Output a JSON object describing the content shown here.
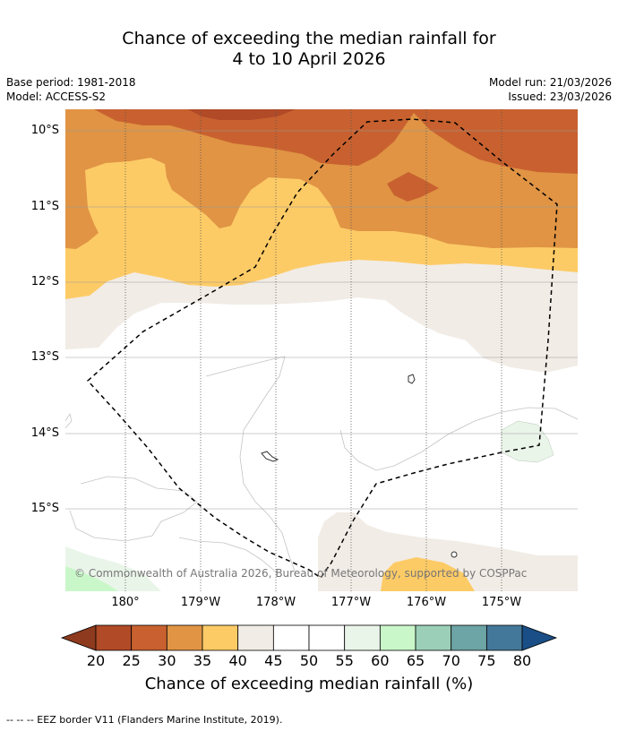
{
  "title_line1": "Chance of exceeding the median rainfall for",
  "title_line2": "4 to 10 April 2026",
  "base_period": "Base period: 1981-2018",
  "model": "Model: ACCESS-S2",
  "model_run": "Model run: 21/03/2026",
  "issued": "Issued: 23/03/2026",
  "lat_labels": [
    "10°S",
    "11°S",
    "12°S",
    "13°S",
    "14°S",
    "15°S"
  ],
  "lon_labels": [
    "180°",
    "179°W",
    "178°W",
    "177°W",
    "176°W",
    "175°W"
  ],
  "copyright": "© Commonwealth of Australia 2026, Bureau of Meteorology, supported by COSPPac",
  "colorbar": {
    "ticks": [
      "20",
      "25",
      "30",
      "35",
      "40",
      "45",
      "50",
      "55",
      "60",
      "65",
      "70",
      "75",
      "80"
    ],
    "colors": {
      "under": "#8e3a1e",
      "bins": [
        "#b14a27",
        "#c8612f",
        "#e09444",
        "#fdcb66",
        "#f1ece6",
        "#ffffff",
        "#ffffff",
        "#eaf5ea",
        "#c9f7c9",
        "#9ccfb8",
        "#6da4a5",
        "#44789a"
      ],
      "over": "#1a4e86"
    },
    "label": "Chance of exceeding median rainfall (%)"
  },
  "footer": "--  --  -- EEZ border V11 (Flanders Marine Institute, 2019)."
}
